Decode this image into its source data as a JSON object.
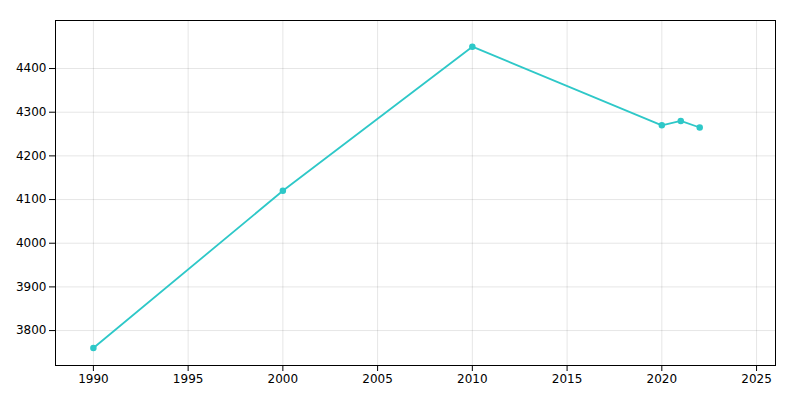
{
  "chart_data": {
    "type": "line",
    "x": [
      1990,
      2000,
      2010,
      2020,
      2021,
      2022
    ],
    "values": [
      3760,
      4120,
      4450,
      4270,
      4280,
      4265
    ],
    "color": "#2ec8c8",
    "marker": "circle",
    "xlim": [
      1988,
      2026
    ],
    "ylim": [
      3720,
      4510
    ],
    "xticks": [
      1990,
      1995,
      2000,
      2005,
      2010,
      2015,
      2020,
      2025
    ],
    "yticks": [
      3800,
      3900,
      4000,
      4100,
      4200,
      4300,
      4400
    ],
    "grid": true
  }
}
